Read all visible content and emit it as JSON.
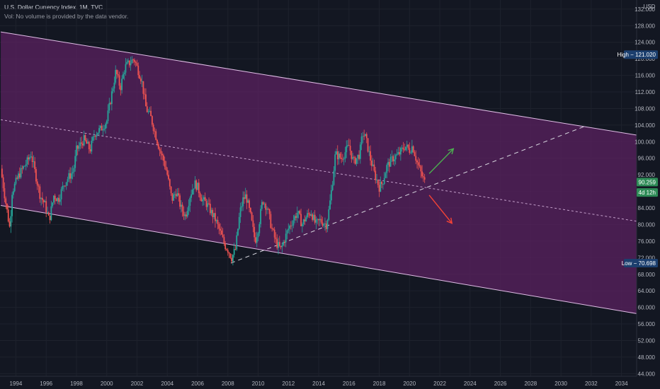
{
  "header": {
    "title": "U.S. Dollar Currency Index, 1M, TVC",
    "volume_note": "Vol: No volume is provided by the data vendor."
  },
  "chart_data": {
    "type": "candlestick",
    "currency": "USD",
    "ylim": [
      40.3,
      134.2
    ],
    "xlim": [
      1992.95,
      2035.0
    ],
    "y_ticks": [
      "132.000",
      "128.000",
      "124.000",
      "120.000",
      "116.000",
      "112.000",
      "108.000",
      "104.000",
      "100.000",
      "96.000",
      "92.000",
      "88.000",
      "84.000",
      "80.000",
      "76.000",
      "72.000",
      "68.000",
      "64.000",
      "60.000",
      "56.000",
      "52.000",
      "48.000",
      "44.000"
    ],
    "x_ticks": [
      "1994",
      "1996",
      "1998",
      "2000",
      "2002",
      "2004",
      "2006",
      "2008",
      "2010",
      "2012",
      "2014",
      "2016",
      "2018",
      "2020",
      "2022",
      "2024",
      "2026",
      "2028",
      "2030",
      "2032",
      "2034"
    ],
    "price_path": [
      [
        1993.0,
        93.5
      ],
      [
        1993.3,
        86
      ],
      [
        1993.6,
        79
      ],
      [
        1993.75,
        88
      ],
      [
        1994.2,
        92
      ],
      [
        1994.8,
        95.5
      ],
      [
        1995.0,
        97
      ],
      [
        1995.3,
        92
      ],
      [
        1995.6,
        87
      ],
      [
        1995.9,
        85
      ],
      [
        1996.2,
        81
      ],
      [
        1996.5,
        87
      ],
      [
        1996.8,
        86
      ],
      [
        1997.2,
        90
      ],
      [
        1997.8,
        93
      ],
      [
        1998.0,
        98
      ],
      [
        1998.5,
        100.5
      ],
      [
        1998.9,
        98
      ],
      [
        1999.2,
        102
      ],
      [
        1999.6,
        103
      ],
      [
        2000.0,
        105
      ],
      [
        2000.3,
        111
      ],
      [
        2000.6,
        117
      ],
      [
        2000.9,
        113
      ],
      [
        2001.2,
        118
      ],
      [
        2001.5,
        119
      ],
      [
        2001.8,
        120
      ],
      [
        2002.0,
        118
      ],
      [
        2002.3,
        115
      ],
      [
        2002.6,
        108
      ],
      [
        2002.9,
        106
      ],
      [
        2003.2,
        102
      ],
      [
        2003.5,
        98
      ],
      [
        2003.8,
        95
      ],
      [
        2004.0,
        92
      ],
      [
        2004.3,
        86
      ],
      [
        2004.6,
        88
      ],
      [
        2004.9,
        84
      ],
      [
        2005.2,
        82
      ],
      [
        2005.5,
        87
      ],
      [
        2005.8,
        90
      ],
      [
        2006.0,
        89
      ],
      [
        2006.3,
        86
      ],
      [
        2006.6,
        85
      ],
      [
        2006.9,
        83
      ],
      [
        2007.2,
        81
      ],
      [
        2007.5,
        78
      ],
      [
        2007.8,
        75
      ],
      [
        2008.0,
        74
      ],
      [
        2008.25,
        72
      ],
      [
        2008.5,
        74
      ],
      [
        2008.8,
        83
      ],
      [
        2009.0,
        86
      ],
      [
        2009.2,
        87
      ],
      [
        2009.5,
        82
      ],
      [
        2009.8,
        76
      ],
      [
        2010.0,
        79
      ],
      [
        2010.3,
        86
      ],
      [
        2010.6,
        84
      ],
      [
        2010.9,
        79
      ],
      [
        2011.2,
        75.5
      ],
      [
        2011.5,
        74
      ],
      [
        2011.7,
        76
      ],
      [
        2012.0,
        79
      ],
      [
        2012.3,
        81
      ],
      [
        2012.6,
        83
      ],
      [
        2012.9,
        80
      ],
      [
        2013.2,
        82
      ],
      [
        2013.5,
        83
      ],
      [
        2013.8,
        80
      ],
      [
        2014.1,
        81
      ],
      [
        2014.5,
        80
      ],
      [
        2014.7,
        84
      ],
      [
        2014.9,
        90
      ],
      [
        2015.1,
        97
      ],
      [
        2015.5,
        96
      ],
      [
        2016.0,
        99
      ],
      [
        2016.3,
        95
      ],
      [
        2016.7,
        97
      ],
      [
        2016.9,
        102
      ],
      [
        2017.1,
        101
      ],
      [
        2017.4,
        96
      ],
      [
        2017.7,
        92
      ],
      [
        2018.0,
        89
      ],
      [
        2018.2,
        90
      ],
      [
        2018.5,
        94
      ],
      [
        2018.9,
        96
      ],
      [
        2019.3,
        97
      ],
      [
        2019.7,
        99
      ],
      [
        2020.0,
        98
      ],
      [
        2020.2,
        99
      ],
      [
        2020.5,
        95
      ],
      [
        2020.8,
        92
      ],
      [
        2021.0,
        90.259
      ]
    ],
    "channel": {
      "upper": [
        [
          1993.0,
          126.5
        ],
        [
          2035.0,
          101.6
        ]
      ],
      "lower": [
        [
          1993.0,
          84.6
        ],
        [
          2035.0,
          58.5
        ]
      ],
      "midline": [
        [
          1993.0,
          105.3
        ],
        [
          2035.0,
          80.8
        ]
      ],
      "trendline": [
        [
          2008.2,
          70.7
        ],
        [
          2031.5,
          103.6
        ]
      ]
    },
    "flags": [
      {
        "name": "High",
        "label": "High − 121.020",
        "value": 121.02,
        "color": "#1c3f6e"
      },
      {
        "name": "Last",
        "label": "90.259",
        "value": 90.259,
        "color": "#2e8b57"
      },
      {
        "name": "Countdown",
        "label": "4d 12h",
        "value": 87.75,
        "color": "#2e8b57"
      },
      {
        "name": "Low",
        "label": "Low − 70.698",
        "value": 70.698,
        "color": "#1c3f6e"
      }
    ],
    "arrows": {
      "up": {
        "from": [
          2021.3,
          92.3
        ],
        "to": [
          2022.9,
          98.3
        ],
        "color": "#4caf50"
      },
      "down": {
        "from": [
          2021.3,
          87.1
        ],
        "to": [
          2022.8,
          80.3
        ],
        "color": "#f44336"
      }
    },
    "colors": {
      "up": "#26a69a",
      "down": "#ef5350",
      "channel_fill": "#5b2160",
      "channel_line": "#e1bee7"
    }
  }
}
